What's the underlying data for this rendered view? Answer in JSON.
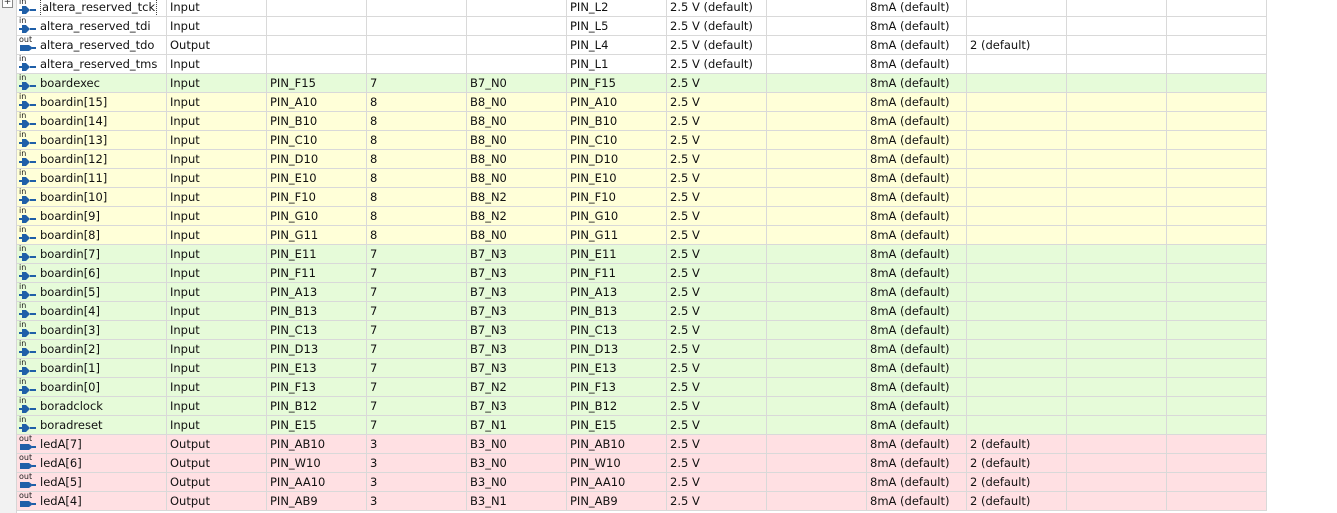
{
  "rows": [
    {
      "name": "altera_reserved_tck",
      "dir": "Input",
      "loc": "",
      "bank": "",
      "vref": "",
      "fit": "PIN_L2",
      "std": "2.5 V (default)",
      "res": "",
      "cur": "8mA (default)",
      "slew": "",
      "color": "default",
      "focused": true
    },
    {
      "name": "altera_reserved_tdi",
      "dir": "Input",
      "loc": "",
      "bank": "",
      "vref": "",
      "fit": "PIN_L5",
      "std": "2.5 V (default)",
      "res": "",
      "cur": "8mA (default)",
      "slew": "",
      "color": "default"
    },
    {
      "name": "altera_reserved_tdo",
      "dir": "Output",
      "loc": "",
      "bank": "",
      "vref": "",
      "fit": "PIN_L4",
      "std": "2.5 V (default)",
      "res": "",
      "cur": "8mA (default)",
      "slew": "2 (default)",
      "color": "default"
    },
    {
      "name": "altera_reserved_tms",
      "dir": "Input",
      "loc": "",
      "bank": "",
      "vref": "",
      "fit": "PIN_L1",
      "std": "2.5 V (default)",
      "res": "",
      "cur": "8mA (default)",
      "slew": "",
      "color": "default"
    },
    {
      "name": "boardexec",
      "dir": "Input",
      "loc": "PIN_F15",
      "bank": "7",
      "vref": "B7_N0",
      "fit": "PIN_F15",
      "std": "2.5 V",
      "res": "",
      "cur": "8mA (default)",
      "slew": "",
      "color": "green"
    },
    {
      "name": "boardin[15]",
      "dir": "Input",
      "loc": "PIN_A10",
      "bank": "8",
      "vref": "B8_N0",
      "fit": "PIN_A10",
      "std": "2.5 V",
      "res": "",
      "cur": "8mA (default)",
      "slew": "",
      "color": "yellow"
    },
    {
      "name": "boardin[14]",
      "dir": "Input",
      "loc": "PIN_B10",
      "bank": "8",
      "vref": "B8_N0",
      "fit": "PIN_B10",
      "std": "2.5 V",
      "res": "",
      "cur": "8mA (default)",
      "slew": "",
      "color": "yellow"
    },
    {
      "name": "boardin[13]",
      "dir": "Input",
      "loc": "PIN_C10",
      "bank": "8",
      "vref": "B8_N0",
      "fit": "PIN_C10",
      "std": "2.5 V",
      "res": "",
      "cur": "8mA (default)",
      "slew": "",
      "color": "yellow"
    },
    {
      "name": "boardin[12]",
      "dir": "Input",
      "loc": "PIN_D10",
      "bank": "8",
      "vref": "B8_N0",
      "fit": "PIN_D10",
      "std": "2.5 V",
      "res": "",
      "cur": "8mA (default)",
      "slew": "",
      "color": "yellow"
    },
    {
      "name": "boardin[11]",
      "dir": "Input",
      "loc": "PIN_E10",
      "bank": "8",
      "vref": "B8_N0",
      "fit": "PIN_E10",
      "std": "2.5 V",
      "res": "",
      "cur": "8mA (default)",
      "slew": "",
      "color": "yellow"
    },
    {
      "name": "boardin[10]",
      "dir": "Input",
      "loc": "PIN_F10",
      "bank": "8",
      "vref": "B8_N2",
      "fit": "PIN_F10",
      "std": "2.5 V",
      "res": "",
      "cur": "8mA (default)",
      "slew": "",
      "color": "yellow"
    },
    {
      "name": "boardin[9]",
      "dir": "Input",
      "loc": "PIN_G10",
      "bank": "8",
      "vref": "B8_N2",
      "fit": "PIN_G10",
      "std": "2.5 V",
      "res": "",
      "cur": "8mA (default)",
      "slew": "",
      "color": "yellow"
    },
    {
      "name": "boardin[8]",
      "dir": "Input",
      "loc": "PIN_G11",
      "bank": "8",
      "vref": "B8_N0",
      "fit": "PIN_G11",
      "std": "2.5 V",
      "res": "",
      "cur": "8mA (default)",
      "slew": "",
      "color": "yellow"
    },
    {
      "name": "boardin[7]",
      "dir": "Input",
      "loc": "PIN_E11",
      "bank": "7",
      "vref": "B7_N3",
      "fit": "PIN_E11",
      "std": "2.5 V",
      "res": "",
      "cur": "8mA (default)",
      "slew": "",
      "color": "green"
    },
    {
      "name": "boardin[6]",
      "dir": "Input",
      "loc": "PIN_F11",
      "bank": "7",
      "vref": "B7_N3",
      "fit": "PIN_F11",
      "std": "2.5 V",
      "res": "",
      "cur": "8mA (default)",
      "slew": "",
      "color": "green"
    },
    {
      "name": "boardin[5]",
      "dir": "Input",
      "loc": "PIN_A13",
      "bank": "7",
      "vref": "B7_N3",
      "fit": "PIN_A13",
      "std": "2.5 V",
      "res": "",
      "cur": "8mA (default)",
      "slew": "",
      "color": "green"
    },
    {
      "name": "boardin[4]",
      "dir": "Input",
      "loc": "PIN_B13",
      "bank": "7",
      "vref": "B7_N3",
      "fit": "PIN_B13",
      "std": "2.5 V",
      "res": "",
      "cur": "8mA (default)",
      "slew": "",
      "color": "green"
    },
    {
      "name": "boardin[3]",
      "dir": "Input",
      "loc": "PIN_C13",
      "bank": "7",
      "vref": "B7_N3",
      "fit": "PIN_C13",
      "std": "2.5 V",
      "res": "",
      "cur": "8mA (default)",
      "slew": "",
      "color": "green"
    },
    {
      "name": "boardin[2]",
      "dir": "Input",
      "loc": "PIN_D13",
      "bank": "7",
      "vref": "B7_N3",
      "fit": "PIN_D13",
      "std": "2.5 V",
      "res": "",
      "cur": "8mA (default)",
      "slew": "",
      "color": "green"
    },
    {
      "name": "boardin[1]",
      "dir": "Input",
      "loc": "PIN_E13",
      "bank": "7",
      "vref": "B7_N3",
      "fit": "PIN_E13",
      "std": "2.5 V",
      "res": "",
      "cur": "8mA (default)",
      "slew": "",
      "color": "green"
    },
    {
      "name": "boardin[0]",
      "dir": "Input",
      "loc": "PIN_F13",
      "bank": "7",
      "vref": "B7_N2",
      "fit": "PIN_F13",
      "std": "2.5 V",
      "res": "",
      "cur": "8mA (default)",
      "slew": "",
      "color": "green"
    },
    {
      "name": "boradclock",
      "dir": "Input",
      "loc": "PIN_B12",
      "bank": "7",
      "vref": "B7_N3",
      "fit": "PIN_B12",
      "std": "2.5 V",
      "res": "",
      "cur": "8mA (default)",
      "slew": "",
      "color": "green"
    },
    {
      "name": "boradreset",
      "dir": "Input",
      "loc": "PIN_E15",
      "bank": "7",
      "vref": "B7_N1",
      "fit": "PIN_E15",
      "std": "2.5 V",
      "res": "",
      "cur": "8mA (default)",
      "slew": "",
      "color": "green"
    },
    {
      "name": "ledA[7]",
      "dir": "Output",
      "loc": "PIN_AB10",
      "bank": "3",
      "vref": "B3_N0",
      "fit": "PIN_AB10",
      "std": "2.5 V",
      "res": "",
      "cur": "8mA (default)",
      "slew": "2 (default)",
      "color": "red"
    },
    {
      "name": "ledA[6]",
      "dir": "Output",
      "loc": "PIN_W10",
      "bank": "3",
      "vref": "B3_N0",
      "fit": "PIN_W10",
      "std": "2.5 V",
      "res": "",
      "cur": "8mA (default)",
      "slew": "2 (default)",
      "color": "red"
    },
    {
      "name": "ledA[5]",
      "dir": "Output",
      "loc": "PIN_AA10",
      "bank": "3",
      "vref": "B3_N0",
      "fit": "PIN_AA10",
      "std": "2.5 V",
      "res": "",
      "cur": "8mA (default)",
      "slew": "2 (default)",
      "color": "red"
    },
    {
      "name": "ledA[4]",
      "dir": "Output",
      "loc": "PIN_AB9",
      "bank": "3",
      "vref": "B3_N1",
      "fit": "PIN_AB9",
      "std": "2.5 V",
      "res": "",
      "cur": "8mA (default)",
      "slew": "2 (default)",
      "color": "red"
    }
  ],
  "icons": {
    "input": {
      "label": "in",
      "name": "input-pin-icon",
      "color": "#1f5fa8"
    },
    "output": {
      "label": "out",
      "name": "output-pin-icon",
      "color": "#1f5fa8"
    }
  },
  "tree": {
    "expand_glyph": "+"
  }
}
